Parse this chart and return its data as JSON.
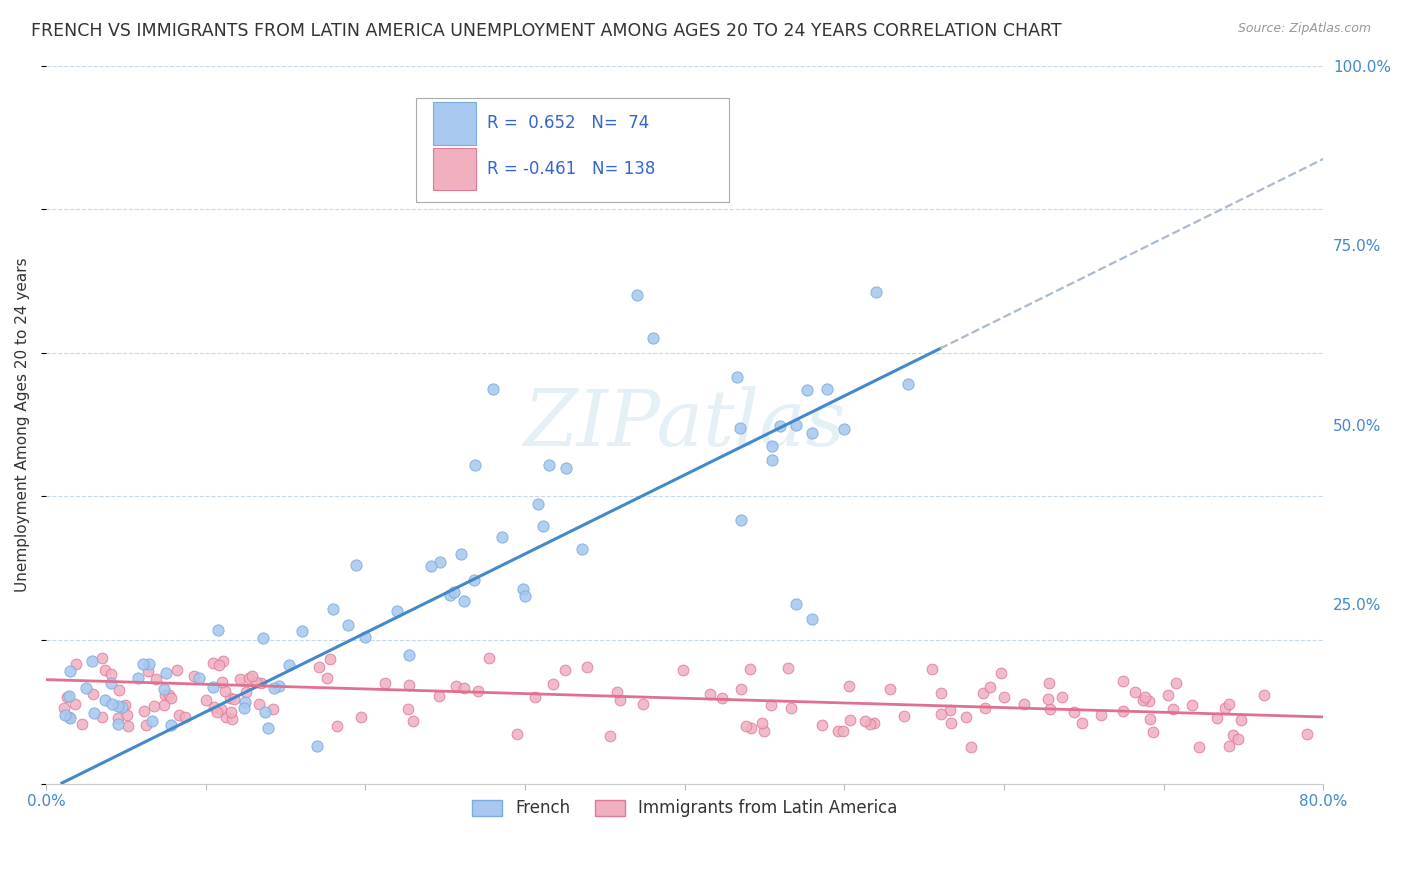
{
  "title": "FRENCH VS IMMIGRANTS FROM LATIN AMERICA UNEMPLOYMENT AMONG AGES 20 TO 24 YEARS CORRELATION CHART",
  "source": "Source: ZipAtlas.com",
  "ylabel": "Unemployment Among Ages 20 to 24 years",
  "xlim": [
    0.0,
    0.8
  ],
  "ylim": [
    0.0,
    1.0
  ],
  "xtick_positions": [
    0.0,
    0.1,
    0.2,
    0.3,
    0.4,
    0.5,
    0.6,
    0.7,
    0.8
  ],
  "xticklabels": [
    "0.0%",
    "",
    "",
    "",
    "",
    "",
    "",
    "",
    "80.0%"
  ],
  "ytick_positions": [
    0.0,
    0.25,
    0.5,
    0.75,
    1.0
  ],
  "ytick_labels": [
    "",
    "25.0%",
    "50.0%",
    "75.0%",
    "100.0%"
  ],
  "grid_color": "#c8d8e8",
  "background_color": "#ffffff",
  "watermark_text": "ZIPatlas",
  "french_color": "#a8c8f0",
  "french_edge_color": "#7aacde",
  "latin_color": "#f0b0c0",
  "latin_edge_color": "#de7a99",
  "blue_line_color": "#4488cc",
  "pink_line_color": "#e07090",
  "dashed_line_color": "#aabbcc",
  "legend_R_french": "0.652",
  "legend_N_french": "74",
  "legend_R_latin": "-0.461",
  "legend_N_latin": "138",
  "legend_text_color": "#3366cc",
  "title_color": "#333333",
  "title_fontsize": 12.5,
  "axis_label_color": "#333333",
  "tick_label_color": "#4488cc",
  "blue_slope": 1.1,
  "blue_intercept": -0.01,
  "pink_slope": -0.065,
  "pink_intercept": 0.145,
  "blue_line_xstart": 0.01,
  "blue_line_xend": 0.56,
  "blue_dash_xstart": 0.56,
  "blue_dash_xend": 0.88,
  "pink_line_xstart": 0.0,
  "pink_line_xend": 0.8
}
